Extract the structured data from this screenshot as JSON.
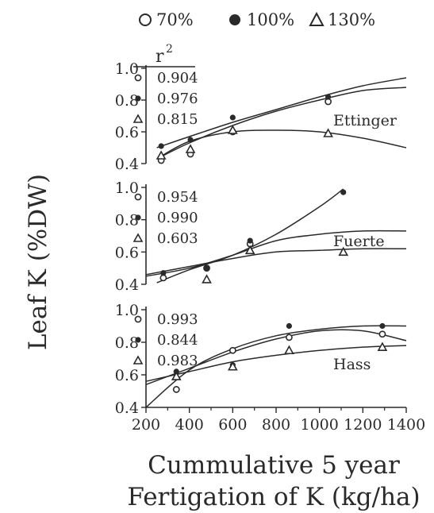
{
  "legend": {
    "items": [
      {
        "label": "70%",
        "marker": "open-circle"
      },
      {
        "label": "100%",
        "marker": "filled-circle"
      },
      {
        "label": "130%",
        "marker": "open-triangle"
      }
    ]
  },
  "r2_header_base": "r",
  "r2_header_sup": "2",
  "ylabel": "Leaf K (%DW)",
  "xlabel_line1": "Cummulative 5 year",
  "xlabel_line2": "Fertigation of K (kg/ha)",
  "colors": {
    "ink": "#2a2a2a",
    "background": "#ffffff"
  },
  "chart_data": {
    "type": "scatter",
    "x_axis": {
      "range": [
        200,
        1400
      ],
      "ticks": [
        200,
        400,
        600,
        800,
        1000,
        1200,
        1400
      ]
    },
    "y_axis": {
      "range": [
        0.4,
        1.0
      ],
      "ticks": [
        0.4,
        0.6,
        0.8,
        1.0
      ]
    },
    "grid": false,
    "panels": [
      {
        "name": "Ettinger",
        "series": [
          {
            "name": "70%",
            "marker": "open-circle",
            "r2": "0.904",
            "x": [
              270,
              405,
              600,
              1040
            ],
            "y": [
              0.42,
              0.46,
              0.6,
              0.79
            ]
          },
          {
            "name": "100%",
            "marker": "filled-circle",
            "r2": "0.976",
            "x": [
              270,
              405,
              600,
              1040
            ],
            "y": [
              0.51,
              0.55,
              0.69,
              0.82
            ]
          },
          {
            "name": "130%",
            "marker": "open-triangle",
            "r2": "0.815",
            "x": [
              270,
              405,
              600,
              1040
            ],
            "y": [
              0.45,
              0.49,
              0.61,
              0.59
            ]
          }
        ],
        "fits": [
          {
            "series": "70%",
            "x": [
              250,
              400,
              600,
              800,
              1000,
              1200,
              1400
            ],
            "y": [
              0.43,
              0.53,
              0.64,
              0.73,
              0.8,
              0.86,
              0.88
            ]
          },
          {
            "series": "100%",
            "x": [
              250,
              400,
              600,
              800,
              1000,
              1200,
              1400
            ],
            "y": [
              0.5,
              0.57,
              0.66,
              0.74,
              0.82,
              0.89,
              0.94
            ]
          },
          {
            "series": "130%",
            "x": [
              250,
              400,
              600,
              800,
              1000,
              1200,
              1400
            ],
            "y": [
              0.43,
              0.54,
              0.6,
              0.61,
              0.6,
              0.56,
              0.5
            ]
          }
        ]
      },
      {
        "name": "Fuerte",
        "series": [
          {
            "name": "70%",
            "marker": "open-circle",
            "r2": "0.954",
            "x": [
              280,
              480,
              680
            ],
            "y": [
              0.44,
              0.5,
              0.65
            ]
          },
          {
            "name": "100%",
            "marker": "filled-circle",
            "r2": "0.990",
            "x": [
              280,
              480,
              680,
              1110
            ],
            "y": [
              0.47,
              0.5,
              0.67,
              0.97
            ]
          },
          {
            "name": "130%",
            "marker": "open-triangle",
            "r2": "0.603",
            "x": [
              480,
              680,
              1110
            ],
            "y": [
              0.43,
              0.61,
              0.6
            ]
          }
        ],
        "fits": [
          {
            "series": "100%",
            "x": [
              250,
              400,
              600,
              800,
              1000,
              1110
            ],
            "y": [
              0.41,
              0.49,
              0.58,
              0.71,
              0.88,
              0.99
            ]
          },
          {
            "series": "70%",
            "x": [
              200,
              400,
              600,
              800,
              1000,
              1200,
              1400
            ],
            "y": [
              0.45,
              0.5,
              0.58,
              0.67,
              0.71,
              0.73,
              0.73
            ]
          },
          {
            "series": "130%",
            "x": [
              200,
              400,
              600,
              800,
              1000,
              1200,
              1400
            ],
            "y": [
              0.46,
              0.51,
              0.56,
              0.6,
              0.61,
              0.62,
              0.62
            ]
          }
        ]
      },
      {
        "name": "Hass",
        "series": [
          {
            "name": "70%",
            "marker": "open-circle",
            "r2": "0.993",
            "x": [
              340,
              600,
              860,
              1290
            ],
            "y": [
              0.51,
              0.75,
              0.83,
              0.85
            ]
          },
          {
            "name": "100%",
            "marker": "filled-circle",
            "r2": "0.844",
            "x": [
              340,
              600,
              860,
              1290
            ],
            "y": [
              0.62,
              0.66,
              0.9,
              0.9
            ]
          },
          {
            "name": "130%",
            "marker": "open-triangle",
            "r2": "0.983",
            "x": [
              340,
              600,
              860,
              1290
            ],
            "y": [
              0.59,
              0.65,
              0.75,
              0.77
            ]
          }
        ],
        "fits": [
          {
            "series": "70%",
            "x": [
              200,
              400,
              600,
              800,
              1000,
              1200,
              1400
            ],
            "y": [
              0.4,
              0.63,
              0.76,
              0.84,
              0.88,
              0.9,
              0.9
            ]
          },
          {
            "series": "100%",
            "x": [
              200,
              400,
              600,
              800,
              1000,
              1200,
              1400
            ],
            "y": [
              0.54,
              0.64,
              0.74,
              0.82,
              0.87,
              0.87,
              0.81
            ]
          },
          {
            "series": "130%",
            "x": [
              200,
              400,
              600,
              800,
              1000,
              1200,
              1400
            ],
            "y": [
              0.56,
              0.62,
              0.68,
              0.72,
              0.75,
              0.77,
              0.78
            ]
          }
        ]
      }
    ]
  }
}
